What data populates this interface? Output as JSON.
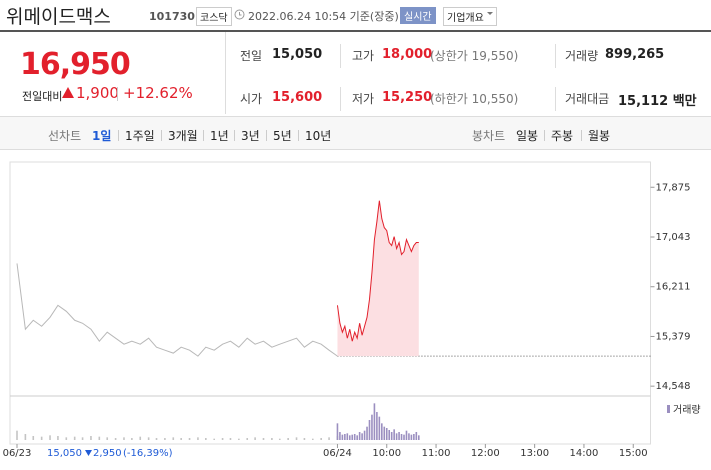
{
  "header": {
    "name": "위메이드맥스",
    "code": "101730",
    "market": "코스닥",
    "datetime": "2022.06.24 10:54 기준(장중)",
    "realtime": "실시간",
    "company": "기업개요"
  },
  "price": {
    "current": "16,950",
    "change_label": "전일대비",
    "change": "1,900",
    "rate": "+12.62%"
  },
  "stats": [
    {
      "label": "전일",
      "value": "15,050"
    },
    {
      "label": "고가",
      "value": "18,000",
      "note": "(상한가 19,550)"
    },
    {
      "label": "거래량",
      "value": "899,265"
    },
    {
      "label": "시가",
      "value": "15,600"
    },
    {
      "label": "저가",
      "value": "15,250",
      "note": "(하한가 10,550)"
    },
    {
      "label": "거래대금",
      "value": "15,112 백만"
    }
  ],
  "tabs": {
    "line_label": "선차트",
    "line_items": [
      "1일",
      "1주일",
      "3개월",
      "1년",
      "3년",
      "5년",
      "10년"
    ],
    "candle_label": "봉차트",
    "candle_items": [
      "일봉",
      "주봉",
      "월봉"
    ]
  },
  "chart_data": {
    "type": "line",
    "ylim": [
      14400,
      18080
    ],
    "yticks": [
      {
        "value": 17875,
        "label": "17,875"
      },
      {
        "value": 17043,
        "label": "17,043"
      },
      {
        "value": 16211,
        "label": "16,211"
      },
      {
        "value": 15379,
        "label": "15,379"
      },
      {
        "value": 14548,
        "label": "14,548"
      }
    ],
    "xlim": [
      0,
      12.85
    ],
    "xticks": [
      {
        "value": 0,
        "label": "06/23"
      },
      {
        "value": 6.5,
        "label": "06/24"
      },
      {
        "value": 7.5,
        "label": "10:00"
      },
      {
        "value": 8.5,
        "label": "11:00"
      },
      {
        "value": 9.5,
        "label": "12:00"
      },
      {
        "value": 10.5,
        "label": "13:00"
      },
      {
        "value": 11.5,
        "label": "14:00"
      },
      {
        "value": 12.5,
        "label": "15:00"
      }
    ],
    "baseline": 15050,
    "volume_label": "거래량",
    "vlim": [
      0,
      60000
    ],
    "series": [
      {
        "color": "#b8b8b8",
        "volume_color": "#c4c4c4",
        "x": [
          0,
          0.17,
          0.33,
          0.5,
          0.67,
          0.83,
          1,
          1.17,
          1.33,
          1.5,
          1.67,
          1.83,
          2,
          2.17,
          2.33,
          2.5,
          2.67,
          2.83,
          3,
          3.17,
          3.33,
          3.5,
          3.67,
          3.83,
          4,
          4.17,
          4.33,
          4.5,
          4.67,
          4.83,
          5,
          5.17,
          5.33,
          5.5,
          5.67,
          5.83,
          6,
          6.17,
          6.33,
          6.5
        ],
        "values": [
          16600,
          15500,
          15650,
          15550,
          15700,
          15900,
          15800,
          15650,
          15600,
          15500,
          15300,
          15450,
          15350,
          15250,
          15300,
          15250,
          15350,
          15200,
          15150,
          15100,
          15200,
          15150,
          15050,
          15200,
          15150,
          15250,
          15300,
          15200,
          15350,
          15250,
          15300,
          15200,
          15250,
          15300,
          15350,
          15200,
          15300,
          15250,
          15150,
          15050
        ],
        "volume": [
          14000,
          9000,
          6000,
          5000,
          7000,
          6000,
          4000,
          5000,
          4000,
          6000,
          5000,
          4000,
          3000,
          4000,
          3000,
          5000,
          4000,
          3000,
          3000,
          4000,
          3000,
          3000,
          4000,
          3000,
          2000,
          3000,
          3000,
          2000,
          3000,
          4000,
          3000,
          3000,
          2000,
          3000,
          4000,
          3000,
          2000,
          3000,
          4000,
          6000
        ]
      },
      {
        "color": "#e2202c",
        "area_color": "#fcdfe2",
        "volume_color": "#9b8fc0",
        "x": [
          6.5,
          6.55,
          6.6,
          6.65,
          6.7,
          6.75,
          6.8,
          6.85,
          6.9,
          6.95,
          7,
          7.05,
          7.1,
          7.15,
          7.2,
          7.25,
          7.3,
          7.35,
          7.4,
          7.45,
          7.5,
          7.55,
          7.6,
          7.65,
          7.7,
          7.75,
          7.8,
          7.85,
          7.9,
          7.95,
          8,
          8.05,
          8.1,
          8.15
        ],
        "values": [
          15900,
          15600,
          15450,
          15550,
          15350,
          15500,
          15300,
          15450,
          15350,
          15600,
          15400,
          15550,
          15700,
          16000,
          16450,
          17000,
          17300,
          17650,
          17350,
          17200,
          17150,
          16950,
          16900,
          17050,
          16850,
          16950,
          16750,
          16800,
          17000,
          16900,
          16800,
          16900,
          16950,
          16950
        ],
        "volume": [
          25000,
          12000,
          8000,
          9000,
          10000,
          7000,
          8000,
          9000,
          7000,
          12000,
          10000,
          14000,
          20000,
          30000,
          38000,
          55000,
          42000,
          35000,
          25000,
          20000,
          18000,
          15000,
          12000,
          16000,
          10000,
          12000,
          9000,
          8000,
          14000,
          10000,
          8000,
          9000,
          12000,
          7000
        ]
      }
    ],
    "info": {
      "close": "15,050",
      "change": "2,950",
      "rate": "(-16,39%)"
    }
  }
}
